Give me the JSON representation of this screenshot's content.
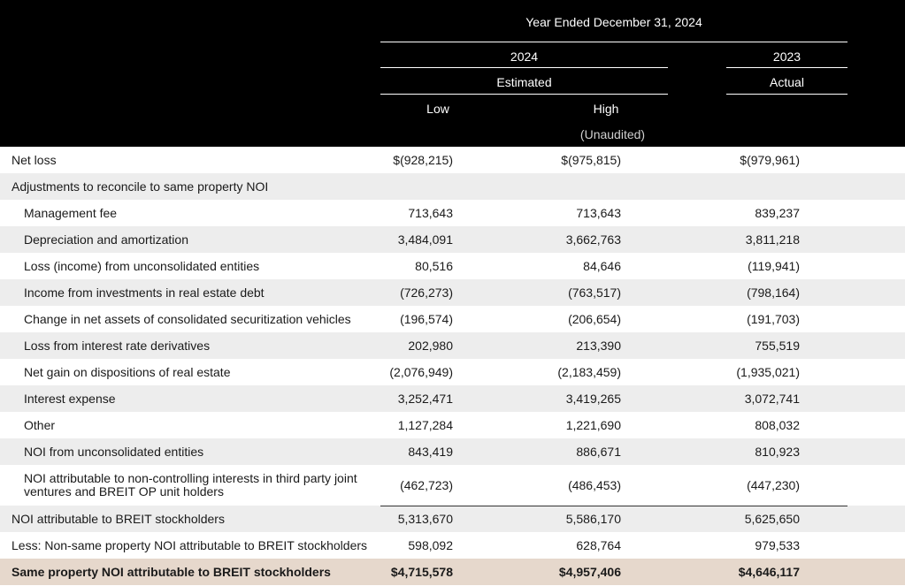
{
  "header": {
    "period": "Year Ended December 31, 2024",
    "col_2024": "2024",
    "col_2023": "2023",
    "estimated": "Estimated",
    "actual": "Actual",
    "low": "Low",
    "high": "High",
    "unaudited": "(Unaudited)"
  },
  "rows": [
    {
      "label": "Net loss",
      "low": "$(928,215)",
      "high": "$(975,815)",
      "actual": "$(979,961)"
    },
    {
      "label": "Adjustments to reconcile to same property NOI",
      "low": "",
      "high": "",
      "actual": ""
    },
    {
      "label": "Management fee",
      "low": "713,643",
      "high": "713,643",
      "actual": "839,237"
    },
    {
      "label": "Depreciation and amortization",
      "low": "3,484,091",
      "high": "3,662,763",
      "actual": "3,811,218"
    },
    {
      "label": "Loss (income) from unconsolidated entities",
      "low": "80,516",
      "high": "84,646",
      "actual": "(119,941)"
    },
    {
      "label": "Income from investments in real estate debt",
      "low": "(726,273)",
      "high": "(763,517)",
      "actual": "(798,164)"
    },
    {
      "label": "Change in net assets of consolidated securitization vehicles",
      "low": "(196,574)",
      "high": "(206,654)",
      "actual": "(191,703)"
    },
    {
      "label": "Loss from interest rate derivatives",
      "low": "202,980",
      "high": "213,390",
      "actual": "755,519"
    },
    {
      "label": "Net gain on dispositions of real estate",
      "low": "(2,076,949)",
      "high": "(2,183,459)",
      "actual": "(1,935,021)"
    },
    {
      "label": "Interest expense",
      "low": "3,252,471",
      "high": "3,419,265",
      "actual": "3,072,741"
    },
    {
      "label": "Other",
      "low": "1,127,284",
      "high": "1,221,690",
      "actual": "808,032"
    },
    {
      "label": "NOI from unconsolidated entities",
      "low": "843,419",
      "high": "886,671",
      "actual": "810,923"
    },
    {
      "label": "NOI attributable to non-controlling interests in third party joint ventures and BREIT OP unit holders",
      "low": "(462,723)",
      "high": "(486,453)",
      "actual": "(447,230)"
    },
    {
      "label": "NOI attributable to BREIT stockholders",
      "low": "5,313,670",
      "high": "5,586,170",
      "actual": "5,625,650"
    },
    {
      "label": "Less: Non-same property NOI attributable to BREIT stockholders",
      "low": "598,092",
      "high": "628,764",
      "actual": "979,533"
    },
    {
      "label": "Same property NOI attributable to BREIT stockholders",
      "low": "$4,715,578",
      "high": "$4,957,406",
      "actual": "$4,646,117"
    }
  ],
  "colors": {
    "header_bg": "#000000",
    "stripe": "#ededed",
    "total_bg": "#e6d8cc"
  }
}
